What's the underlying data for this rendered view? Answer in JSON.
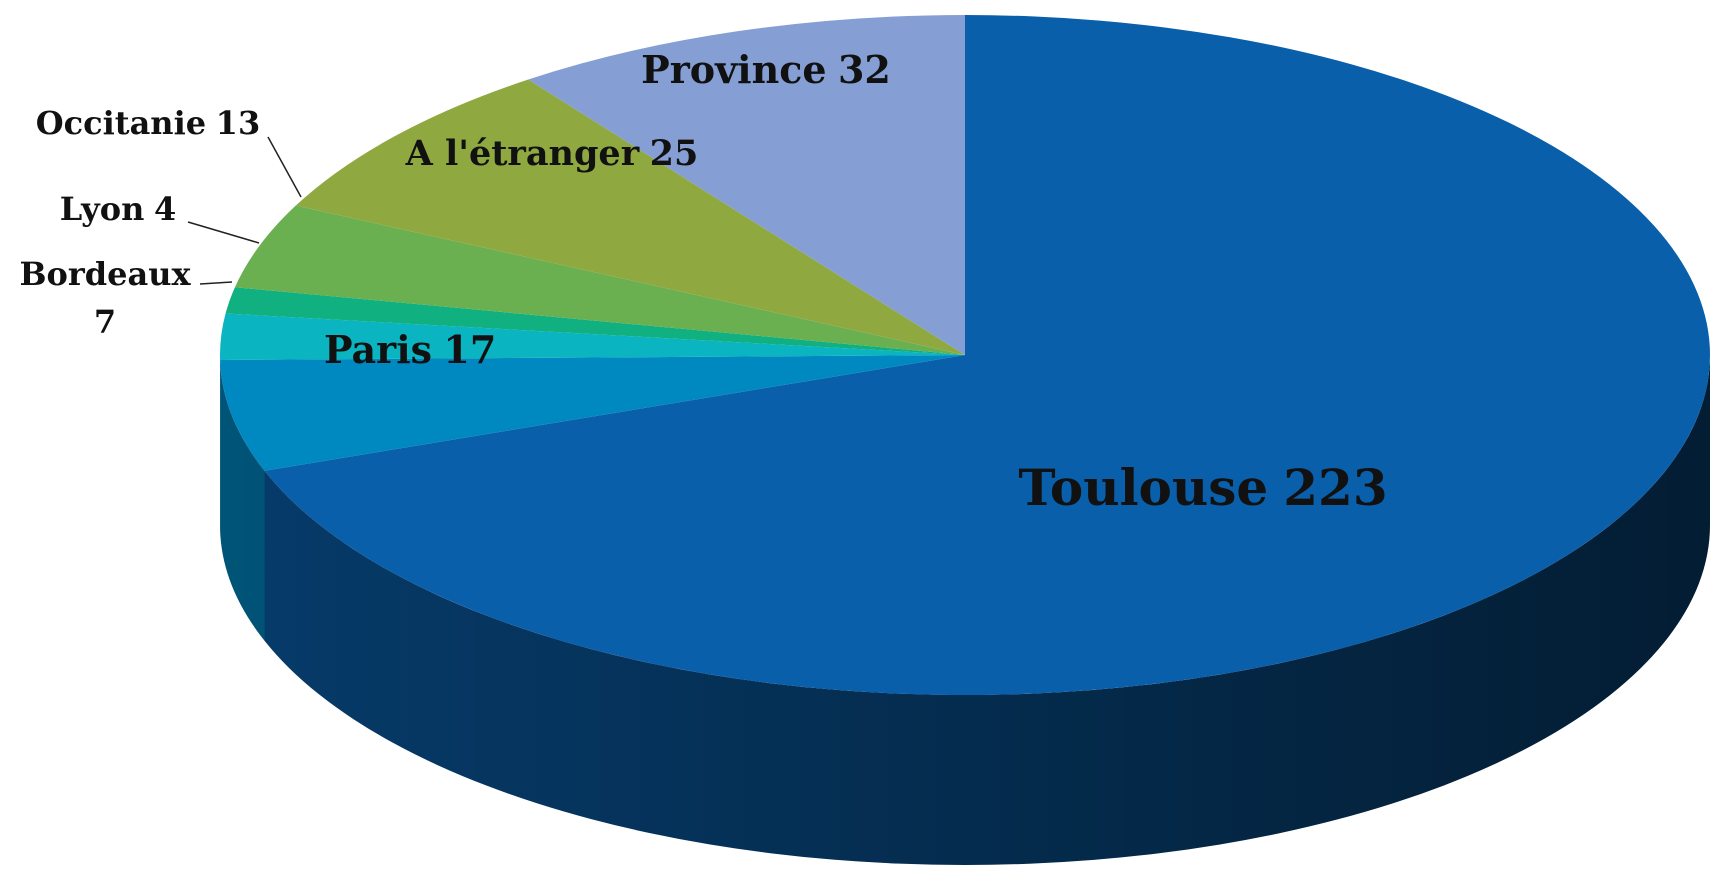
{
  "chart_data": {
    "type": "pie",
    "categories": [
      "Toulouse",
      "Paris",
      "Bordeaux",
      "Lyon",
      "Occitanie",
      "A l'étranger",
      "Province"
    ],
    "values": [
      223,
      17,
      7,
      4,
      13,
      25,
      32
    ],
    "colors": [
      "#0a5fab",
      "#0088c0",
      "#0ab4c0",
      "#10b080",
      "#6ab050",
      "#90a840",
      "#859fd4"
    ]
  }
}
